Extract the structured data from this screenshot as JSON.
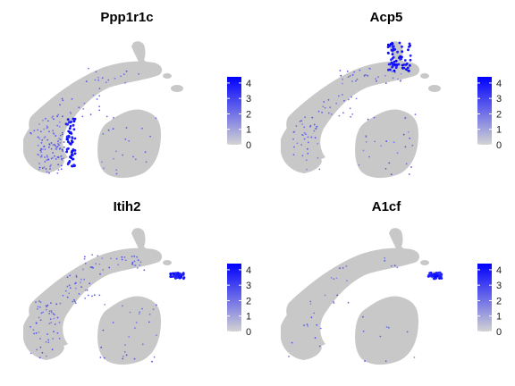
{
  "chart_data": [
    {
      "type": "scatter",
      "title": "Ppp1r1c",
      "legend": {
        "ticks": [
          "4",
          "3",
          "2",
          "1",
          "0"
        ],
        "range": [
          0,
          4.4
        ],
        "low_color": "#d3d3d3",
        "high_color": "#0000ff",
        "placement": "right"
      },
      "hotspot": "clusterA-right-edge",
      "background_color": "#c8c8c8",
      "grid": false
    },
    {
      "type": "scatter",
      "title": "Acp5",
      "legend": {
        "ticks": [
          "4",
          "3",
          "2",
          "1",
          "0"
        ],
        "range": [
          0,
          4.4
        ],
        "low_color": "#d3d3d3",
        "high_color": "#0000ff",
        "placement": "right"
      },
      "hotspot": "top-island",
      "background_color": "#c8c8c8",
      "grid": false
    },
    {
      "type": "scatter",
      "title": "Itih2",
      "legend": {
        "ticks": [
          "4",
          "3",
          "2",
          "1",
          "0"
        ],
        "range": [
          0,
          4.4
        ],
        "low_color": "#d3d3d3",
        "high_color": "#0000ff",
        "placement": "right"
      },
      "hotspot": "small-island",
      "background_color": "#c8c8c8",
      "grid": false
    },
    {
      "type": "scatter",
      "title": "A1cf",
      "legend": {
        "ticks": [
          "4",
          "3",
          "2",
          "1",
          "0"
        ],
        "range": [
          0,
          4.4
        ],
        "low_color": "#d3d3d3",
        "high_color": "#0000ff",
        "placement": "right"
      },
      "hotspot": "small-island",
      "background_color": "#c8c8c8",
      "grid": false
    }
  ]
}
